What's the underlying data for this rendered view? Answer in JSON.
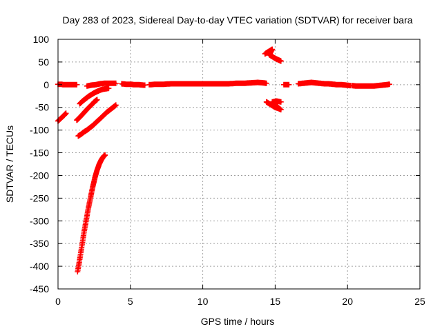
{
  "chart_data": {
    "type": "scatter",
    "title": "Day 283 of 2023, Sidereal Day-to-day VTEC variation (SDTVAR) for receiver bara",
    "xlabel": "GPS time / hours",
    "ylabel": "SDTVAR / TECUs",
    "xlim": [
      0,
      25
    ],
    "ylim": [
      -450,
      100
    ],
    "xticks": [
      0,
      5,
      10,
      15,
      20,
      25
    ],
    "yticks": [
      -450,
      -400,
      -350,
      -300,
      -250,
      -200,
      -150,
      -100,
      -50,
      0,
      50,
      100
    ],
    "x_tick_labels": [
      "0",
      "5",
      "10",
      "15",
      "20",
      "25"
    ],
    "y_tick_labels": [
      "-450",
      "-400",
      "-350",
      "-300",
      "-250",
      "-200",
      "-150",
      "-100",
      "-50",
      "0",
      "50",
      "100"
    ],
    "grid": true,
    "marker": "plus",
    "color": "#ff0000",
    "series": [
      {
        "name": "arc-1",
        "points": [
          [
            0.0,
            -80
          ],
          [
            0.2,
            -74
          ],
          [
            0.4,
            -68
          ],
          [
            0.55,
            -63
          ]
        ]
      },
      {
        "name": "arc-2",
        "points": [
          [
            0.0,
            1
          ],
          [
            0.2,
            1
          ],
          [
            0.4,
            0
          ],
          [
            0.6,
            0
          ],
          [
            0.8,
            0
          ],
          [
            1.0,
            0
          ],
          [
            1.2,
            0
          ],
          [
            1.3,
            0
          ]
        ]
      },
      {
        "name": "arc-3",
        "points": [
          [
            1.3,
            -78
          ],
          [
            1.5,
            -72
          ],
          [
            1.7,
            -65
          ],
          [
            1.9,
            -58
          ],
          [
            2.1,
            -51
          ],
          [
            2.3,
            -45
          ],
          [
            2.5,
            -38
          ],
          [
            2.7,
            -33
          ]
        ]
      },
      {
        "name": "arc-4",
        "points": [
          [
            1.5,
            -42
          ],
          [
            1.7,
            -36
          ],
          [
            1.9,
            -31
          ],
          [
            2.1,
            -26
          ],
          [
            2.3,
            -22
          ],
          [
            2.5,
            -18
          ],
          [
            2.7,
            -15
          ],
          [
            2.9,
            -12
          ],
          [
            3.1,
            -10
          ],
          [
            3.3,
            -9
          ],
          [
            3.5,
            -8
          ]
        ]
      },
      {
        "name": "arc-5",
        "points": [
          [
            1.4,
            -113
          ],
          [
            1.6,
            -109
          ],
          [
            1.8,
            -104
          ],
          [
            2.0,
            -100
          ],
          [
            2.2,
            -95
          ],
          [
            2.4,
            -90
          ],
          [
            2.6,
            -84
          ],
          [
            2.8,
            -78
          ],
          [
            3.0,
            -72
          ],
          [
            3.2,
            -66
          ],
          [
            3.4,
            -60
          ],
          [
            3.6,
            -55
          ],
          [
            3.8,
            -50
          ],
          [
            4.0,
            -45
          ]
        ]
      },
      {
        "name": "arc-6",
        "points": [
          [
            1.35,
            -412
          ],
          [
            1.5,
            -385
          ],
          [
            1.65,
            -355
          ],
          [
            1.8,
            -325
          ],
          [
            1.95,
            -298
          ],
          [
            2.1,
            -272
          ],
          [
            2.25,
            -248
          ],
          [
            2.4,
            -225
          ],
          [
            2.55,
            -205
          ],
          [
            2.7,
            -188
          ],
          [
            2.85,
            -175
          ],
          [
            3.0,
            -165
          ],
          [
            3.15,
            -158
          ],
          [
            3.25,
            -155
          ]
        ]
      },
      {
        "name": "arc-7",
        "points": [
          [
            2.0,
            -3
          ],
          [
            2.3,
            -1
          ],
          [
            2.6,
            0
          ],
          [
            2.9,
            2
          ],
          [
            3.2,
            3
          ],
          [
            3.5,
            3
          ],
          [
            3.8,
            3
          ],
          [
            4.0,
            3
          ]
        ]
      },
      {
        "name": "arc-8",
        "points": [
          [
            4.4,
            2
          ],
          [
            4.7,
            1
          ],
          [
            5.0,
            1
          ],
          [
            5.3,
            0
          ],
          [
            5.6,
            0
          ],
          [
            5.9,
            -1
          ],
          [
            6.0,
            -1
          ]
        ]
      },
      {
        "name": "arc-9",
        "points": [
          [
            6.3,
            0
          ],
          [
            6.8,
            1
          ],
          [
            7.3,
            1
          ],
          [
            7.8,
            2
          ],
          [
            8.3,
            2
          ],
          [
            8.8,
            2
          ],
          [
            9.3,
            2
          ],
          [
            9.8,
            2
          ],
          [
            10.3,
            2
          ],
          [
            10.8,
            2
          ],
          [
            11.3,
            2
          ],
          [
            11.8,
            2
          ],
          [
            12.3,
            3
          ],
          [
            12.8,
            3
          ],
          [
            13.3,
            4
          ],
          [
            13.8,
            5
          ],
          [
            14.2,
            4
          ],
          [
            14.4,
            3
          ]
        ]
      },
      {
        "name": "arc-10",
        "points": [
          [
            14.3,
            68
          ],
          [
            14.5,
            72
          ],
          [
            14.7,
            76
          ],
          [
            14.8,
            78
          ],
          [
            14.6,
            66
          ],
          [
            14.8,
            62
          ],
          [
            15.0,
            58
          ],
          [
            15.2,
            55
          ],
          [
            15.4,
            52
          ]
        ]
      },
      {
        "name": "arc-11",
        "points": [
          [
            14.4,
            -38
          ],
          [
            14.6,
            -42
          ],
          [
            14.8,
            -46
          ],
          [
            15.0,
            -50
          ],
          [
            15.2,
            -52
          ],
          [
            15.4,
            -55
          ],
          [
            14.8,
            -38
          ],
          [
            15.1,
            -36
          ],
          [
            15.4,
            -38
          ]
        ]
      },
      {
        "name": "arc-12",
        "points": [
          [
            15.6,
            0
          ],
          [
            15.8,
            0
          ],
          [
            15.95,
            0
          ]
        ]
      },
      {
        "name": "arc-13",
        "points": [
          [
            16.6,
            2
          ],
          [
            16.9,
            3
          ],
          [
            17.2,
            4
          ],
          [
            17.5,
            5
          ],
          [
            17.8,
            4
          ],
          [
            18.1,
            3
          ],
          [
            18.4,
            2
          ],
          [
            18.7,
            2
          ],
          [
            19.0,
            1
          ],
          [
            19.3,
            0
          ],
          [
            19.6,
            0
          ],
          [
            19.9,
            -1
          ],
          [
            20.2,
            -2
          ]
        ]
      },
      {
        "name": "arc-14",
        "points": [
          [
            20.3,
            -2
          ],
          [
            20.6,
            -3
          ],
          [
            20.9,
            -3
          ],
          [
            21.2,
            -3
          ],
          [
            21.5,
            -3
          ],
          [
            21.8,
            -3
          ],
          [
            22.1,
            -2
          ],
          [
            22.4,
            -1
          ],
          [
            22.7,
            0
          ],
          [
            22.9,
            1
          ]
        ]
      }
    ]
  }
}
